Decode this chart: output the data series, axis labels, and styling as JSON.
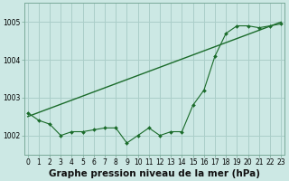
{
  "xlabel": "Graphe pression niveau de la mer (hPa)",
  "background_color": "#cce8e4",
  "grid_color": "#aacec9",
  "line_color": "#1a6b2a",
  "x_ticks": [
    0,
    1,
    2,
    3,
    4,
    5,
    6,
    7,
    8,
    9,
    10,
    11,
    12,
    13,
    14,
    15,
    16,
    17,
    18,
    19,
    20,
    21,
    22,
    23
  ],
  "ylim": [
    1001.5,
    1005.5
  ],
  "xlim": [
    -0.3,
    23.3
  ],
  "series1_x": [
    0,
    1,
    2,
    3,
    4,
    5,
    6,
    7,
    8,
    9,
    10,
    11,
    12,
    13,
    14,
    15,
    16,
    17,
    18,
    19,
    20,
    21,
    22,
    23
  ],
  "series1_y": [
    1002.6,
    1002.4,
    1002.3,
    1002.0,
    1002.1,
    1002.1,
    1002.15,
    1002.2,
    1002.2,
    1001.8,
    1002.0,
    1002.2,
    1002.0,
    1002.1,
    1002.1,
    1002.8,
    1003.2,
    1004.1,
    1004.7,
    1004.9,
    1004.9,
    1004.85,
    1004.9,
    1004.95
  ],
  "series2_x": [
    0,
    23
  ],
  "series2_y": [
    1002.5,
    1005.0
  ],
  "yticks": [
    1002,
    1003,
    1004,
    1005
  ],
  "tick_fontsize": 5.5,
  "label_fontsize": 7.5
}
